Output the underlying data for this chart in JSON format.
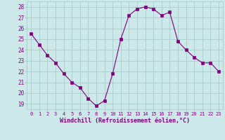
{
  "x": [
    0,
    1,
    2,
    3,
    4,
    5,
    6,
    7,
    8,
    9,
    10,
    11,
    12,
    13,
    14,
    15,
    16,
    17,
    18,
    19,
    20,
    21,
    22,
    23
  ],
  "y": [
    25.5,
    24.5,
    23.5,
    22.8,
    21.8,
    21.0,
    20.5,
    19.5,
    18.8,
    19.3,
    21.8,
    25.0,
    27.2,
    27.8,
    28.0,
    27.8,
    27.2,
    27.5,
    24.8,
    24.0,
    23.3,
    22.8,
    22.8,
    22.0
  ],
  "line_color": "#800080",
  "marker": "s",
  "marker_size": 2.5,
  "bg_color": "#cce8e8",
  "grid_color": "#aacccc",
  "xlabel": "Windchill (Refroidissement éolien,°C)",
  "xlabel_color": "#800080",
  "tick_color": "#800080",
  "xlim": [
    -0.5,
    23.5
  ],
  "ylim": [
    18.5,
    28.5
  ],
  "yticks": [
    19,
    20,
    21,
    22,
    23,
    24,
    25,
    26,
    27,
    28
  ],
  "xticks": [
    0,
    1,
    2,
    3,
    4,
    5,
    6,
    7,
    8,
    9,
    10,
    11,
    12,
    13,
    14,
    15,
    16,
    17,
    18,
    19,
    20,
    21,
    22,
    23
  ]
}
